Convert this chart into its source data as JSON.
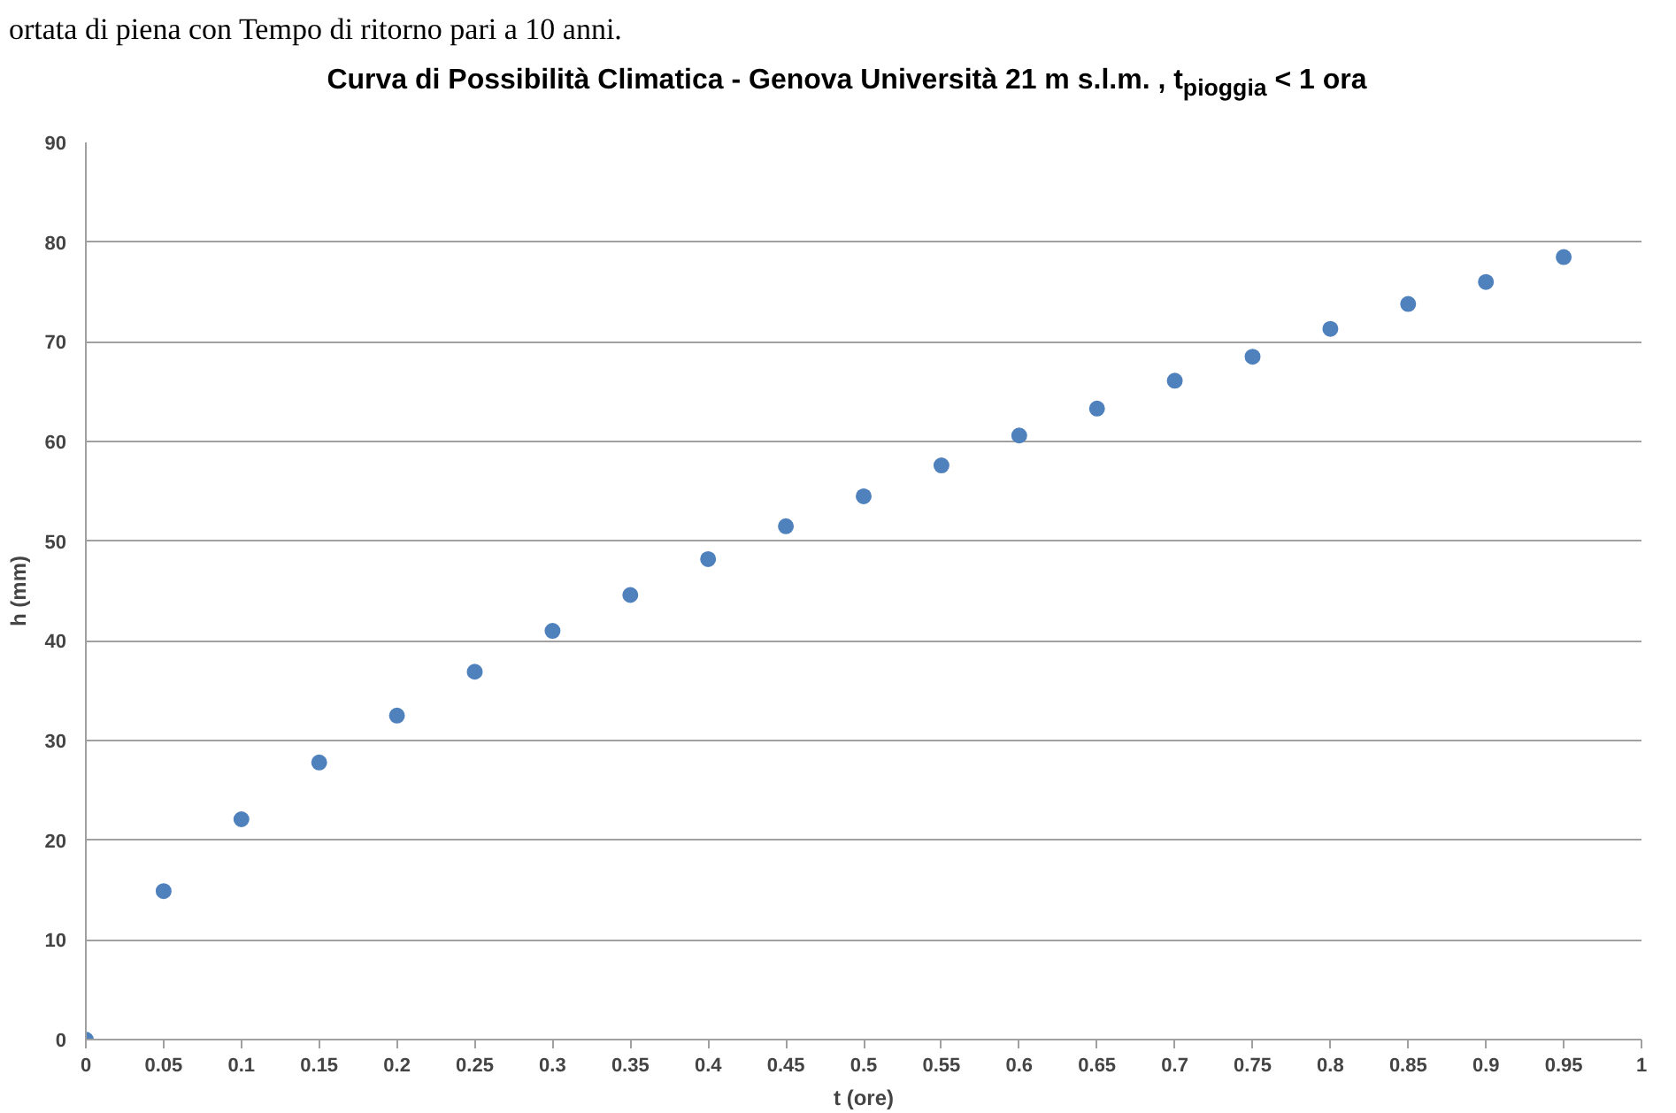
{
  "chart_data": {
    "type": "scatter",
    "title": "Curva di Possibilità Climatica - Genova Università 21 m s.l.m. , t$_{pioggia}$ < 1 ora",
    "xlabel": "t (ore)",
    "ylabel": "h (mm)",
    "annotations": [
      "ortata di piena con Tempo di ritorno pari a 10 anni."
    ],
    "x": [
      0,
      0.05,
      0.1,
      0.15,
      0.2,
      0.25,
      0.3,
      0.35,
      0.4,
      0.45,
      0.5,
      0.55,
      0.6,
      0.65,
      0.7,
      0.75,
      0.8,
      0.85,
      0.9,
      0.95
    ],
    "series": [
      {
        "color": "#4f81bd",
        "values": [
          0,
          14.9,
          22.1,
          27.8,
          32.5,
          36.9,
          41.0,
          44.6,
          48.2,
          51.5,
          54.5,
          57.6,
          60.6,
          63.3,
          66.1,
          68.5,
          71.3,
          73.8,
          76.0,
          78.5
        ]
      }
    ],
    "xlim": [
      0,
      1
    ],
    "ylim": [
      0,
      90
    ],
    "xticks": [
      0,
      0.05,
      0.1,
      0.15,
      0.2,
      0.25,
      0.3,
      0.35,
      0.4,
      0.45,
      0.5,
      0.55,
      0.6,
      0.65,
      0.7,
      0.75,
      0.8,
      0.85,
      0.9,
      0.95,
      1
    ],
    "yticks": [
      0,
      10,
      20,
      30,
      40,
      50,
      60,
      70,
      80,
      90
    ],
    "grid": "y",
    "marker": "circle"
  }
}
